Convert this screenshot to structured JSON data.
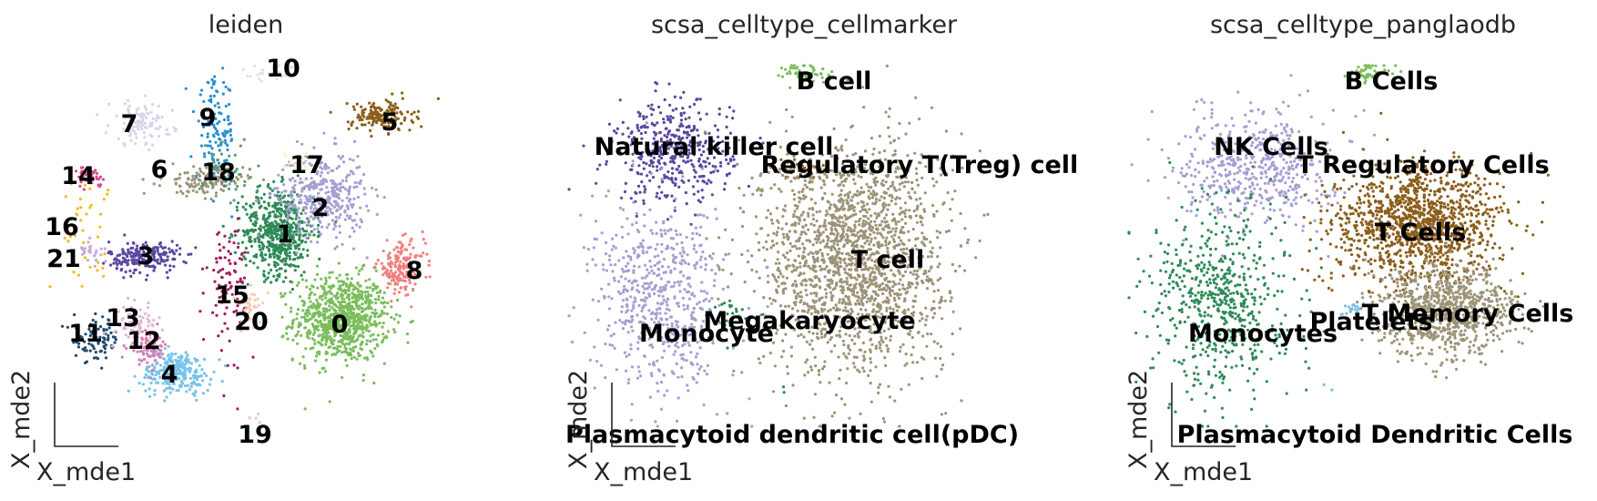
{
  "chart_data": [
    {
      "type": "scatter",
      "title": "leiden",
      "xlabel": "X_mde1",
      "ylabel": "X_mde2",
      "xlim": [
        0,
        100
      ],
      "ylim": [
        0,
        100
      ],
      "grid": false,
      "legend": "on data",
      "clusters": [
        {
          "label": "0",
          "x": 74,
          "y": 30,
          "count": 850,
          "sx": 6,
          "sy": 6,
          "color": "#7bbd5c"
        },
        {
          "label": "1",
          "x": 58,
          "y": 54,
          "count": 560,
          "sx": 4.5,
          "sy": 6,
          "color": "#2e8b57"
        },
        {
          "label": "2",
          "x": 69,
          "y": 64,
          "count": 380,
          "sx": 5.5,
          "sy": 6,
          "color": "#a79ed2"
        },
        {
          "label": "3",
          "x": 24,
          "y": 47,
          "count": 220,
          "sx": 4.5,
          "sy": 2.2,
          "color": "#5a47a0"
        },
        {
          "label": "4",
          "x": 32,
          "y": 15,
          "count": 260,
          "sx": 4.5,
          "sy": 3,
          "color": "#79c2ea"
        },
        {
          "label": "5",
          "x": 84,
          "y": 86,
          "count": 170,
          "sx": 4,
          "sy": 2.2,
          "color": "#8b5e1a"
        },
        {
          "label": "6",
          "x": 39,
          "y": 68,
          "count": 130,
          "sx": 5,
          "sy": 2,
          "color": "#9d9377"
        },
        {
          "label": "7",
          "x": 23,
          "y": 84,
          "count": 110,
          "sx": 4,
          "sy": 3,
          "color": "#d8d4ea"
        },
        {
          "label": "8",
          "x": 89,
          "y": 44,
          "count": 170,
          "sx": 3,
          "sy": 3.5,
          "color": "#f08080"
        },
        {
          "label": "9",
          "x": 42,
          "y": 82,
          "count": 130,
          "sx": 2.5,
          "sy": 7,
          "color": "#2a8fd0"
        },
        {
          "label": "10",
          "x": 57,
          "y": 98,
          "count": 40,
          "sx": 3,
          "sy": 1,
          "color": "#e2e2e2"
        },
        {
          "label": "11",
          "x": 12,
          "y": 24,
          "count": 90,
          "sx": 3,
          "sy": 3,
          "color": "#1e4a6e"
        },
        {
          "label": "12",
          "x": 25,
          "y": 22,
          "count": 80,
          "sx": 2.5,
          "sy": 2.5,
          "color": "#d47eb7"
        },
        {
          "label": "13",
          "x": 22,
          "y": 28,
          "count": 70,
          "sx": 2.5,
          "sy": 2.5,
          "color": "#e4b5d6"
        },
        {
          "label": "14",
          "x": 10,
          "y": 69,
          "count": 35,
          "sx": 1.5,
          "sy": 1.5,
          "color": "#d34d8b"
        },
        {
          "label": "15",
          "x": 45,
          "y": 40,
          "count": 90,
          "sx": 2.5,
          "sy": 10,
          "color": "#a11c5e"
        },
        {
          "label": "16",
          "x": 8,
          "y": 56,
          "count": 40,
          "sx": 4,
          "sy": 7,
          "color": "#f5bb1b"
        },
        {
          "label": "17",
          "x": 63,
          "y": 73,
          "count": 40,
          "sx": 2,
          "sy": 1.5,
          "color": "#f5f5d0"
        },
        {
          "label": "18",
          "x": 45,
          "y": 71,
          "count": 50,
          "sx": 3,
          "sy": 5,
          "color": "#5a9d7a"
        },
        {
          "label": "19",
          "x": 52,
          "y": 3,
          "count": 4,
          "sx": 1,
          "sy": 1,
          "color": "#f7c4a8"
        },
        {
          "label": "20",
          "x": 51,
          "y": 33,
          "count": 40,
          "sx": 2,
          "sy": 2.5,
          "color": "#f5cbb2"
        },
        {
          "label": "21",
          "x": 10,
          "y": 48,
          "count": 25,
          "sx": 2,
          "sy": 2,
          "color": "#c7a8de"
        }
      ]
    },
    {
      "type": "scatter",
      "title": "scsa_celltype_cellmarker",
      "xlabel": "X_mde1",
      "ylabel": "X_mde2",
      "xlim": [
        0,
        100
      ],
      "ylim": [
        0,
        100
      ],
      "grid": false,
      "legend": "on data",
      "clusters": [
        {
          "label": "B cell",
          "x": 57,
          "y": 98,
          "count": 50,
          "sx": 3,
          "sy": 1.5,
          "color": "#7bbd5c"
        },
        {
          "label": "Natural killer cell",
          "x": 25,
          "y": 76,
          "count": 420,
          "sx": 7,
          "sy": 7,
          "color": "#5a47a0"
        },
        {
          "label": "Regulatory T(Treg) cell",
          "x": 56,
          "y": 71,
          "count": 40,
          "sx": 3,
          "sy": 2,
          "color": "#8b5e1a"
        },
        {
          "label": "T cell",
          "x": 68,
          "y": 47,
          "count": 1900,
          "sx": 11,
          "sy": 16,
          "color": "#9d9377"
        },
        {
          "label": "Megakaryocyte",
          "x": 40,
          "y": 30,
          "count": 30,
          "sx": 3,
          "sy": 3,
          "color": "#2e8b57"
        },
        {
          "label": "Monocyte",
          "x": 22,
          "y": 35,
          "count": 620,
          "sx": 8,
          "sy": 13,
          "color": "#a79ed2"
        },
        {
          "label": "Plasmacytoid dendritic cell(pDC)",
          "x": 51,
          "y": 10,
          "count": 2,
          "sx": 1,
          "sy": 1,
          "color": "#2e8b57"
        }
      ]
    },
    {
      "type": "scatter",
      "title": "scsa_celltype_panglaodb",
      "xlabel": "X_mde1",
      "ylabel": "X_mde2",
      "xlim": [
        0,
        100
      ],
      "ylim": [
        0,
        100
      ],
      "grid": false,
      "legend": "on data",
      "clusters": [
        {
          "label": "B Cells",
          "x": 57,
          "y": 98,
          "count": 50,
          "sx": 3,
          "sy": 1.5,
          "color": "#7bbd5c"
        },
        {
          "label": "NK Cells",
          "x": 30,
          "y": 72,
          "count": 520,
          "sx": 9,
          "sy": 8,
          "color": "#a79ed2"
        },
        {
          "label": "T Regulatory Cells",
          "x": 52,
          "y": 55,
          "count": 100,
          "sx": 4,
          "sy": 8,
          "color": "#8b5e1a"
        },
        {
          "label": "T Cells",
          "x": 70,
          "y": 56,
          "count": 1150,
          "sx": 9,
          "sy": 8,
          "color": "#8b5e1a"
        },
        {
          "label": "T Memory Cells",
          "x": 75,
          "y": 32,
          "count": 900,
          "sx": 8,
          "sy": 6,
          "color": "#9d9377"
        },
        {
          "label": "Platelets",
          "x": 53,
          "y": 33,
          "count": 20,
          "sx": 1.5,
          "sy": 1.5,
          "color": "#79c2ea"
        },
        {
          "label": "Monocytes",
          "x": 22,
          "y": 35,
          "count": 600,
          "sx": 8,
          "sy": 13,
          "color": "#2e8b57"
        },
        {
          "label": "Plasmacytoid Dendritic Cells",
          "x": 48,
          "y": 10,
          "count": 2,
          "sx": 1,
          "sy": 1,
          "color": "#79c2ea"
        }
      ]
    }
  ]
}
